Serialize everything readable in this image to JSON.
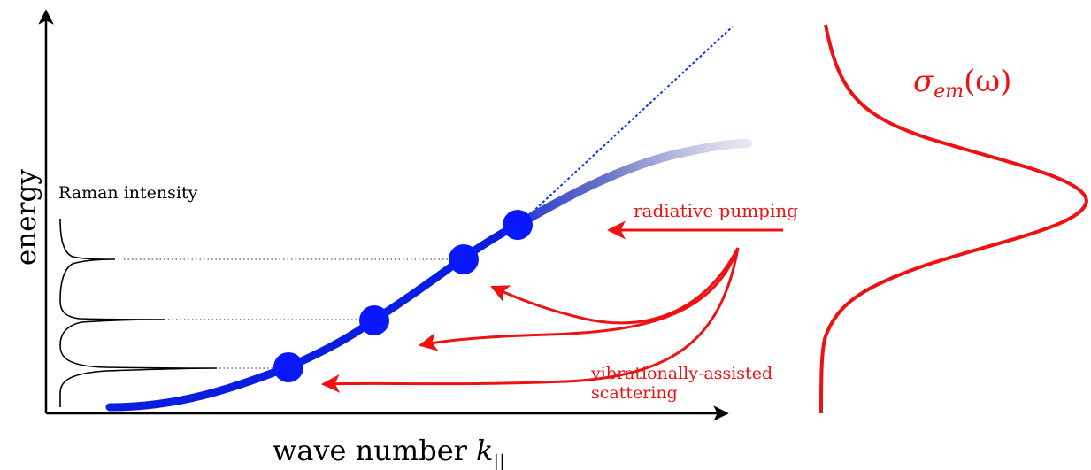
{
  "axes": {
    "y_label": "energy",
    "x_label": "wave number",
    "x_label_symbol": "k",
    "x_label_subscript": "||"
  },
  "raman": {
    "label": "Raman intensity"
  },
  "annotations": {
    "radiative_pumping": "radiative pumping",
    "vibrational_line1": "vibrationally-assisted",
    "vibrational_line2": "scattering"
  },
  "emission": {
    "sigma": "σ",
    "subscript": "em",
    "argument": "(ω)"
  },
  "colors": {
    "axis": "#000000",
    "dispersion": "#0a1ee0",
    "dot": "#0a18ff",
    "arrow": "#ee1111",
    "emission": "#ee1111",
    "guide": "#555555"
  }
}
